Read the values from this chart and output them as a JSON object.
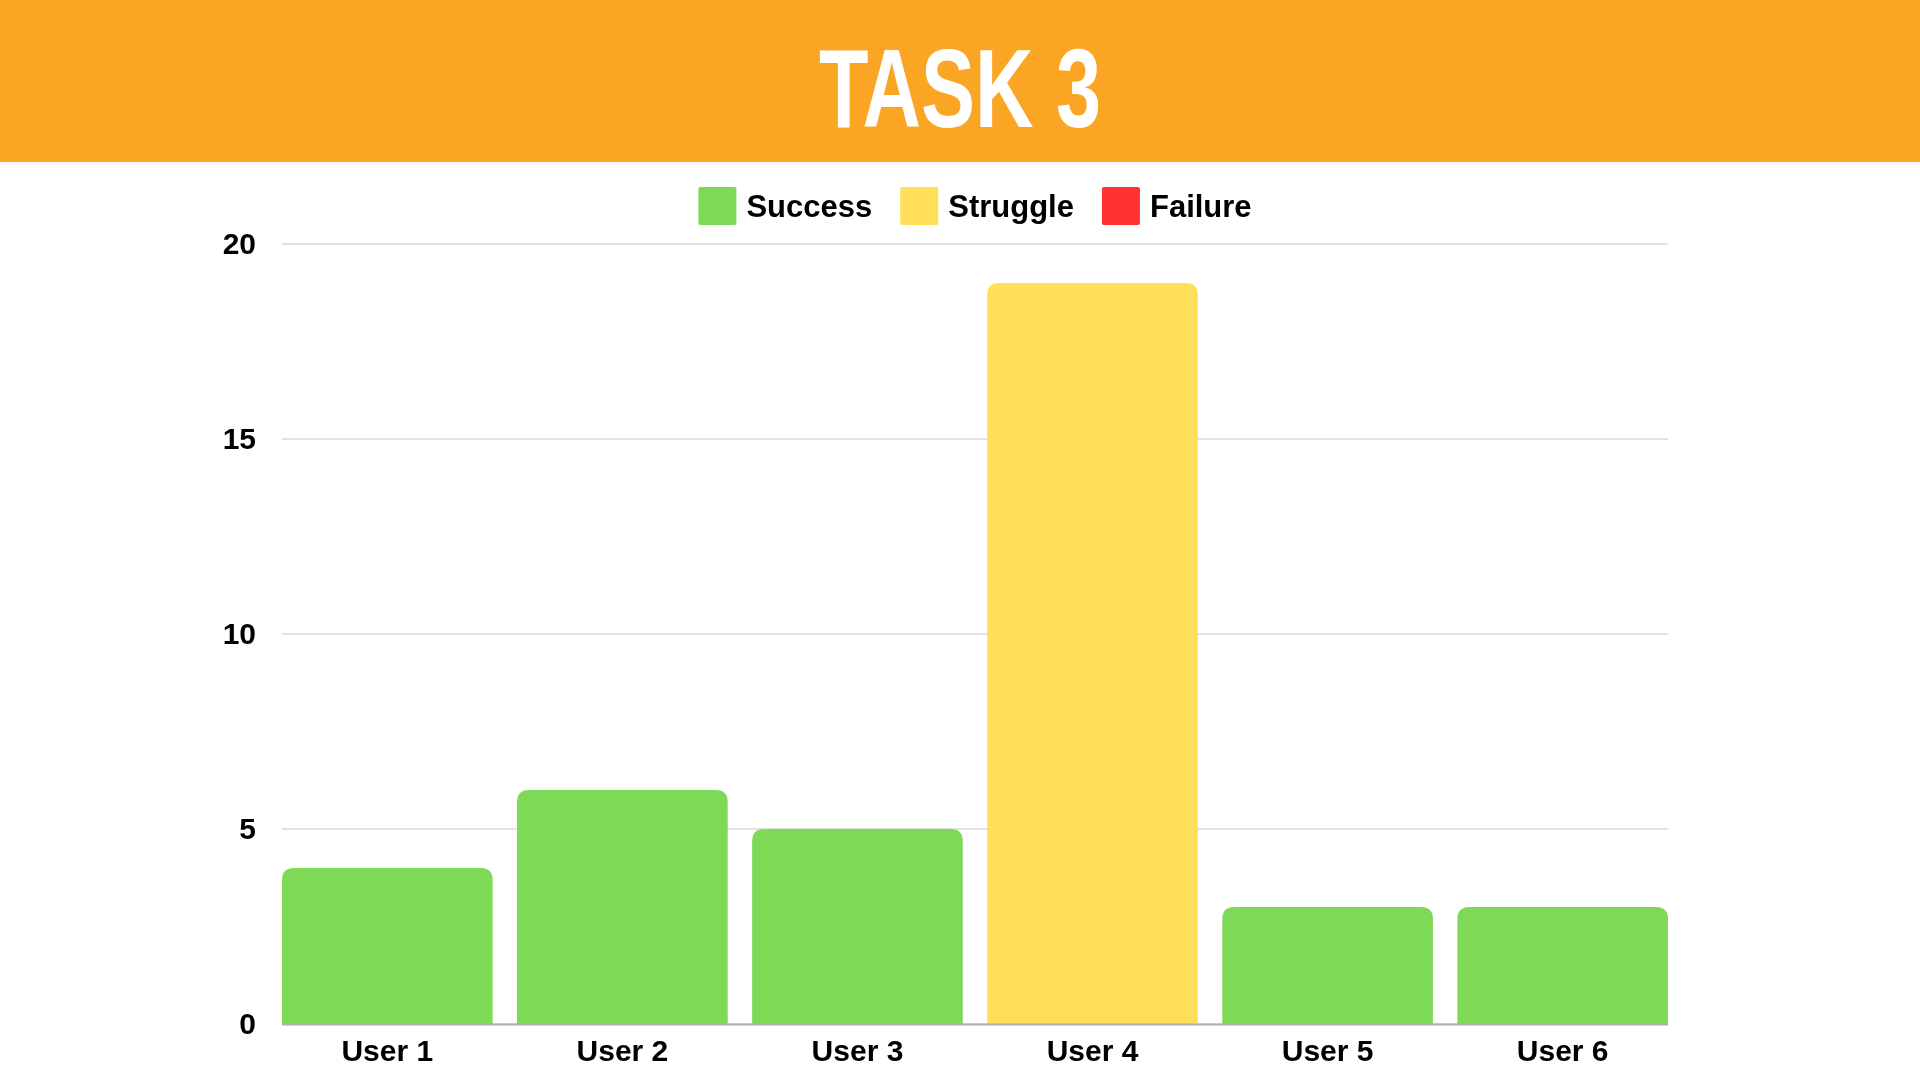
{
  "chart_data": {
    "type": "bar",
    "title": "TASK 3",
    "categories": [
      "User 1",
      "User 2",
      "User 3",
      "User 4",
      "User 5",
      "User 6"
    ],
    "series": [
      {
        "name": "Success",
        "color": "#7ed957",
        "values": [
          4,
          6,
          5,
          null,
          3,
          3
        ]
      },
      {
        "name": "Struggle",
        "color": "#ffde59",
        "values": [
          null,
          null,
          null,
          19,
          null,
          null
        ]
      },
      {
        "name": "Failure",
        "color": "#ff3131",
        "values": [
          null,
          null,
          null,
          null,
          null,
          null
        ]
      }
    ],
    "stacked": true,
    "ylim": [
      0,
      20
    ],
    "yticks": [
      0,
      5,
      10,
      15,
      20
    ],
    "grid": "y",
    "legend": "top"
  }
}
